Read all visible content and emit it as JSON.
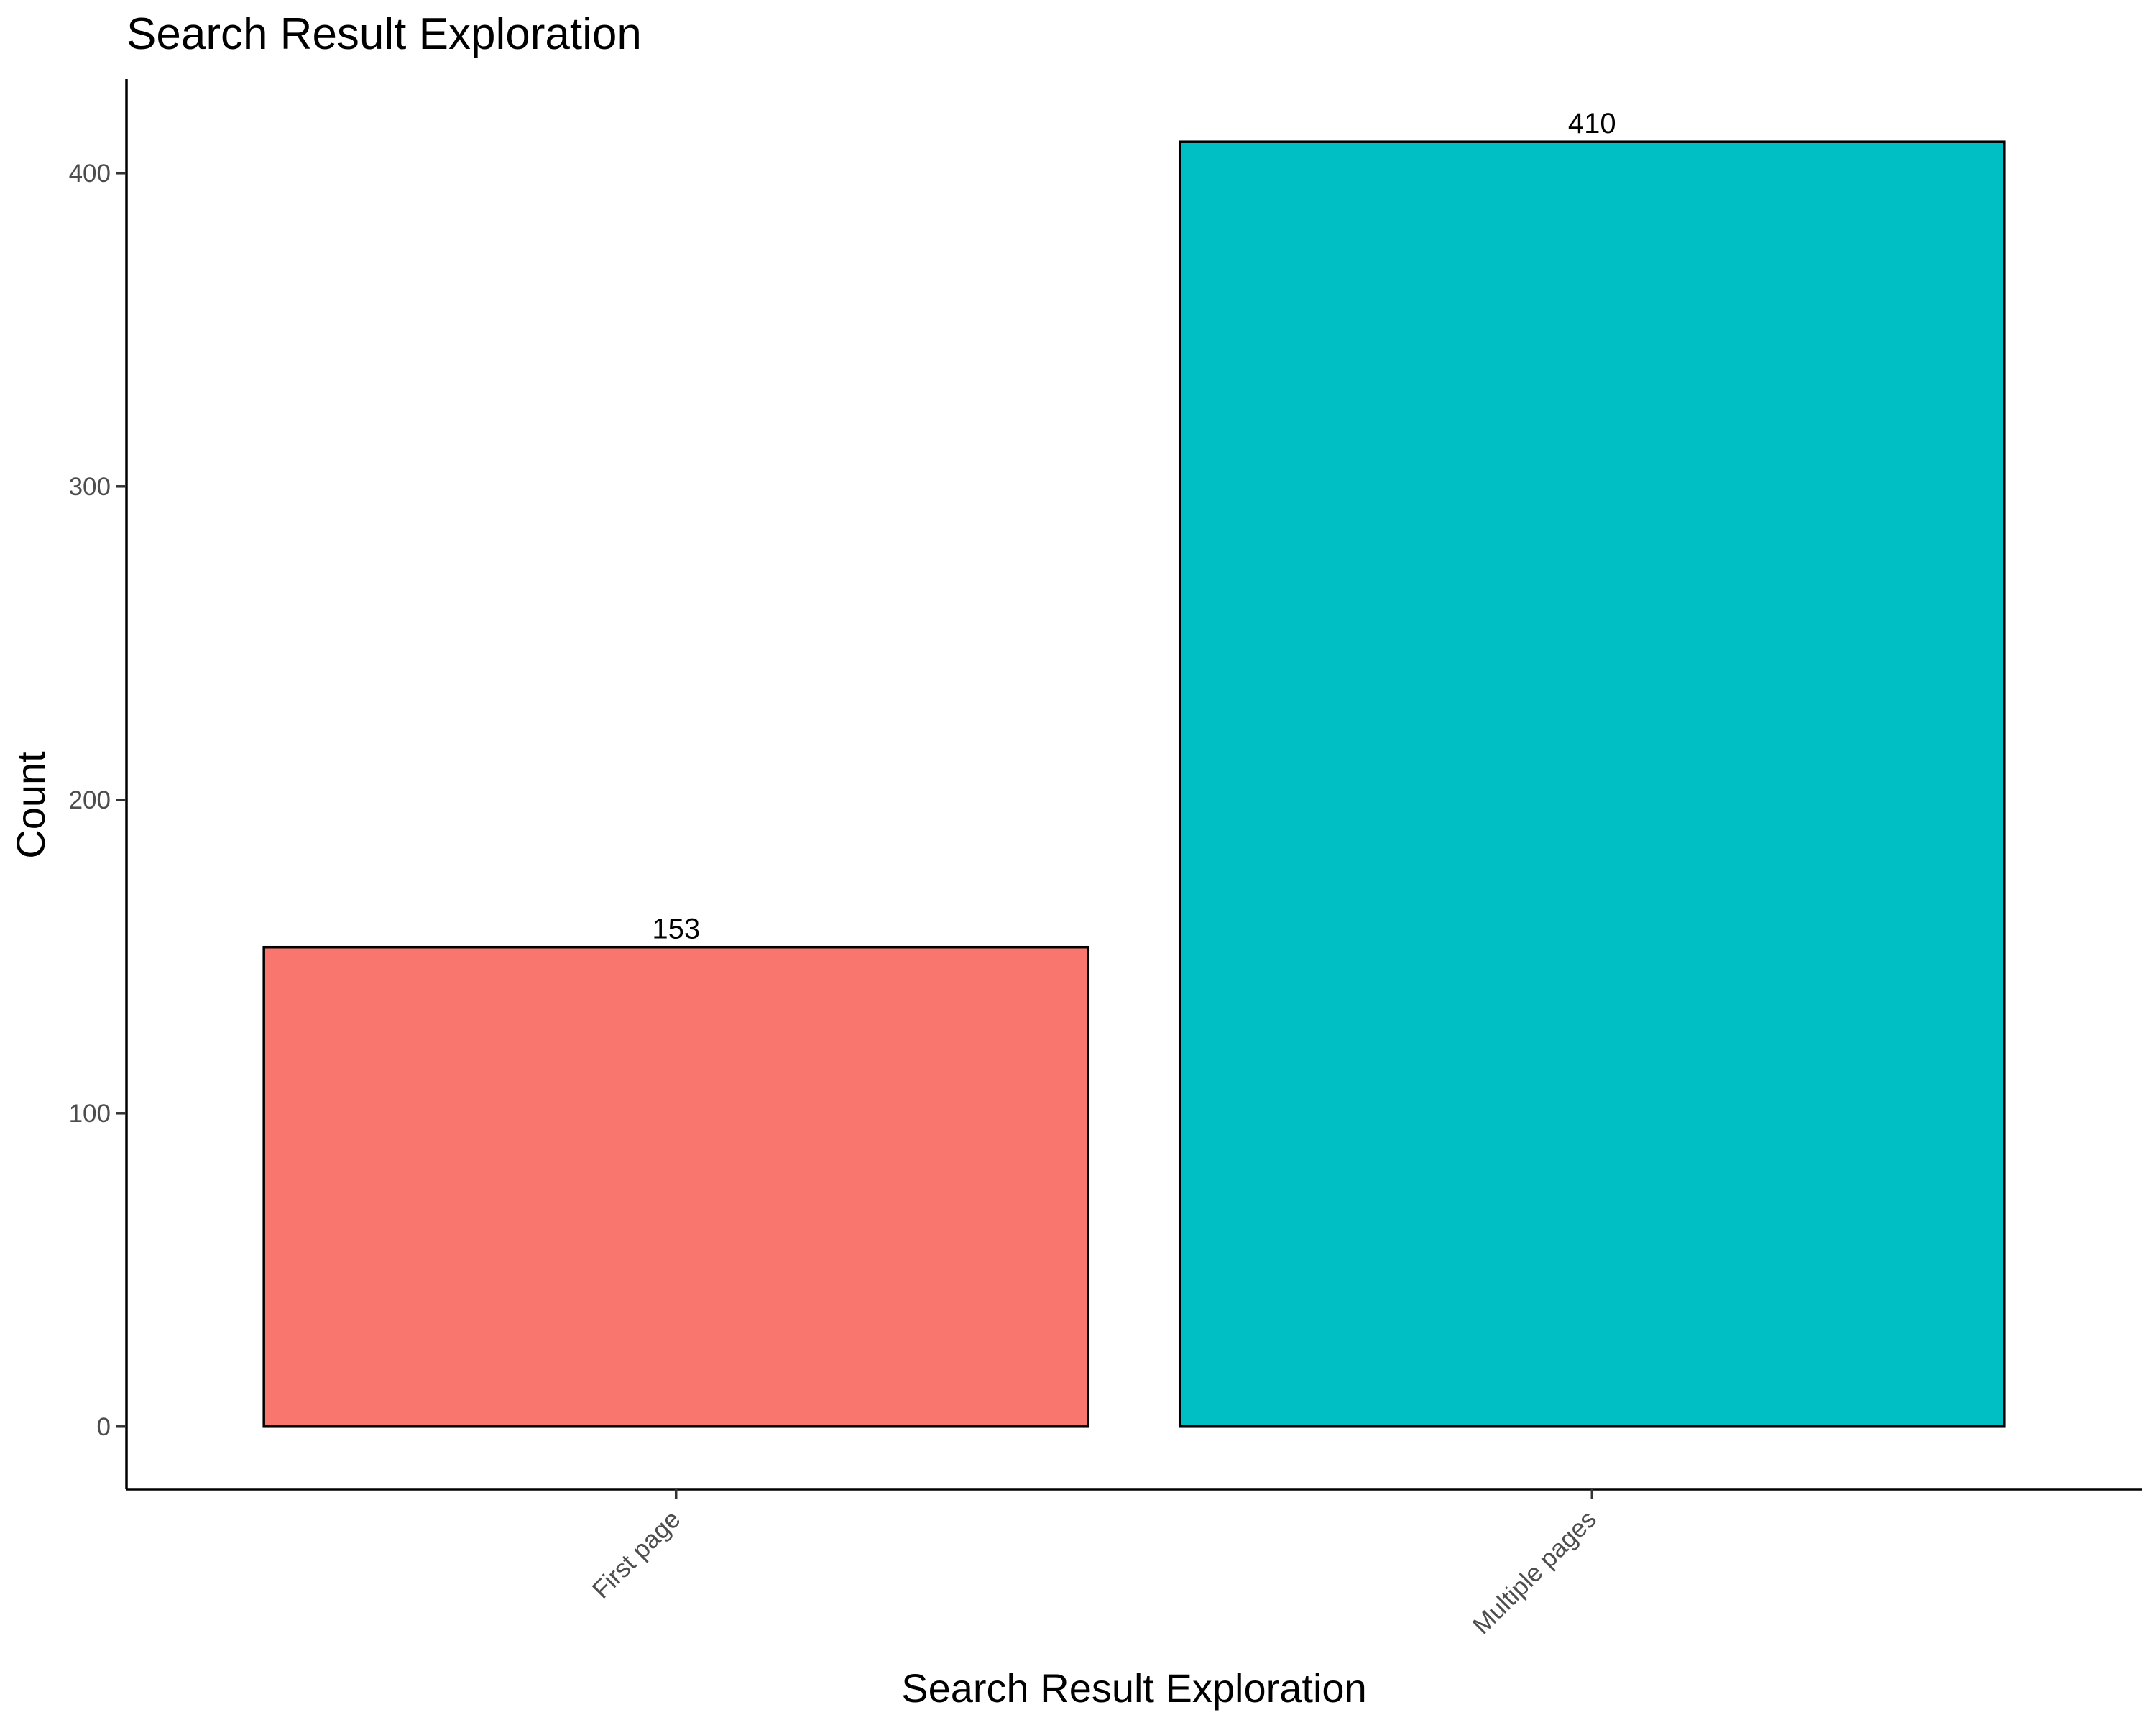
{
  "chart_data": {
    "type": "bar",
    "title": "Search Result Exploration",
    "xlabel": "Search Result Exploration",
    "ylabel": "Count",
    "categories": [
      "First page",
      "Multiple pages"
    ],
    "values": [
      153,
      410
    ],
    "data_labels": [
      "153",
      "410"
    ],
    "colors": [
      "#F8766D",
      "#00BFC4"
    ],
    "ylim": [
      -20,
      430
    ],
    "yticks": [
      0,
      100,
      200,
      300,
      400
    ],
    "ytick_labels": [
      "0",
      "100",
      "200",
      "300",
      "400"
    ],
    "x_tick_rotation": 45,
    "grid": false,
    "legend": "none"
  }
}
